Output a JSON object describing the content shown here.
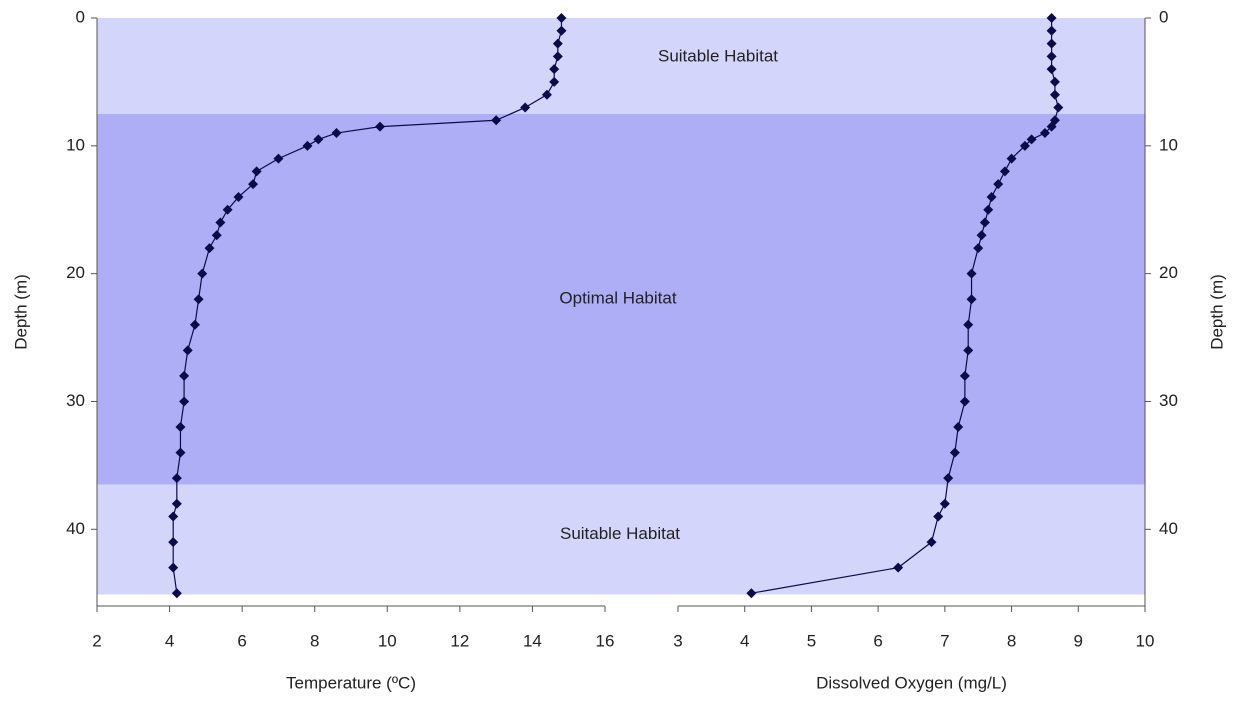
{
  "chart_data": {
    "type": "line",
    "ylabel": "Depth (m)",
    "ylim": [
      0,
      46
    ],
    "yticks": [
      0,
      10,
      20,
      30,
      40
    ],
    "y_inverted": true,
    "depth": [
      0,
      1,
      2,
      3,
      4,
      5,
      6,
      7,
      8,
      8.5,
      9,
      9.5,
      10,
      11,
      12,
      13,
      14,
      15,
      16,
      17,
      18,
      20,
      22,
      24,
      26,
      28,
      30,
      32,
      34,
      36,
      38,
      39,
      41,
      43,
      45
    ],
    "bands": [
      {
        "label": "Suitable Habitat",
        "from": 0,
        "to": 7.5,
        "color": "#d4d5fa"
      },
      {
        "label": "Optimal Habitat",
        "from": 7.5,
        "to": 36.5,
        "color": "#adaef6"
      },
      {
        "label": "Suitable Habitat",
        "from": 36.5,
        "to": 45.1,
        "color": "#d4d5fa"
      }
    ],
    "panels": [
      {
        "xlabel": "Temperature (ºC)",
        "xlim": [
          2,
          16
        ],
        "xticks": [
          2,
          4,
          6,
          8,
          10,
          12,
          14,
          16
        ],
        "color": "#0b0b4a",
        "values": [
          14.8,
          14.8,
          14.7,
          14.7,
          14.6,
          14.6,
          14.4,
          13.8,
          13.0,
          9.8,
          8.6,
          8.1,
          7.8,
          7.0,
          6.4,
          6.3,
          5.9,
          5.6,
          5.4,
          5.3,
          5.1,
          4.9,
          4.8,
          4.7,
          4.5,
          4.4,
          4.4,
          4.3,
          4.3,
          4.2,
          4.2,
          4.1,
          4.1,
          4.1,
          4.2
        ]
      },
      {
        "xlabel": "Dissolved Oxygen (mg/L)",
        "xlim": [
          3,
          10
        ],
        "xticks": [
          3,
          4,
          5,
          6,
          7,
          8,
          9,
          10
        ],
        "color": "#0b0b4a",
        "values": [
          8.6,
          8.6,
          8.6,
          8.6,
          8.6,
          8.65,
          8.65,
          8.7,
          8.65,
          8.6,
          8.5,
          8.3,
          8.2,
          8.0,
          7.9,
          7.8,
          7.7,
          7.65,
          7.6,
          7.55,
          7.5,
          7.4,
          7.4,
          7.35,
          7.35,
          7.3,
          7.3,
          7.2,
          7.15,
          7.05,
          7.0,
          6.9,
          6.8,
          6.3,
          4.1
        ]
      }
    ]
  }
}
